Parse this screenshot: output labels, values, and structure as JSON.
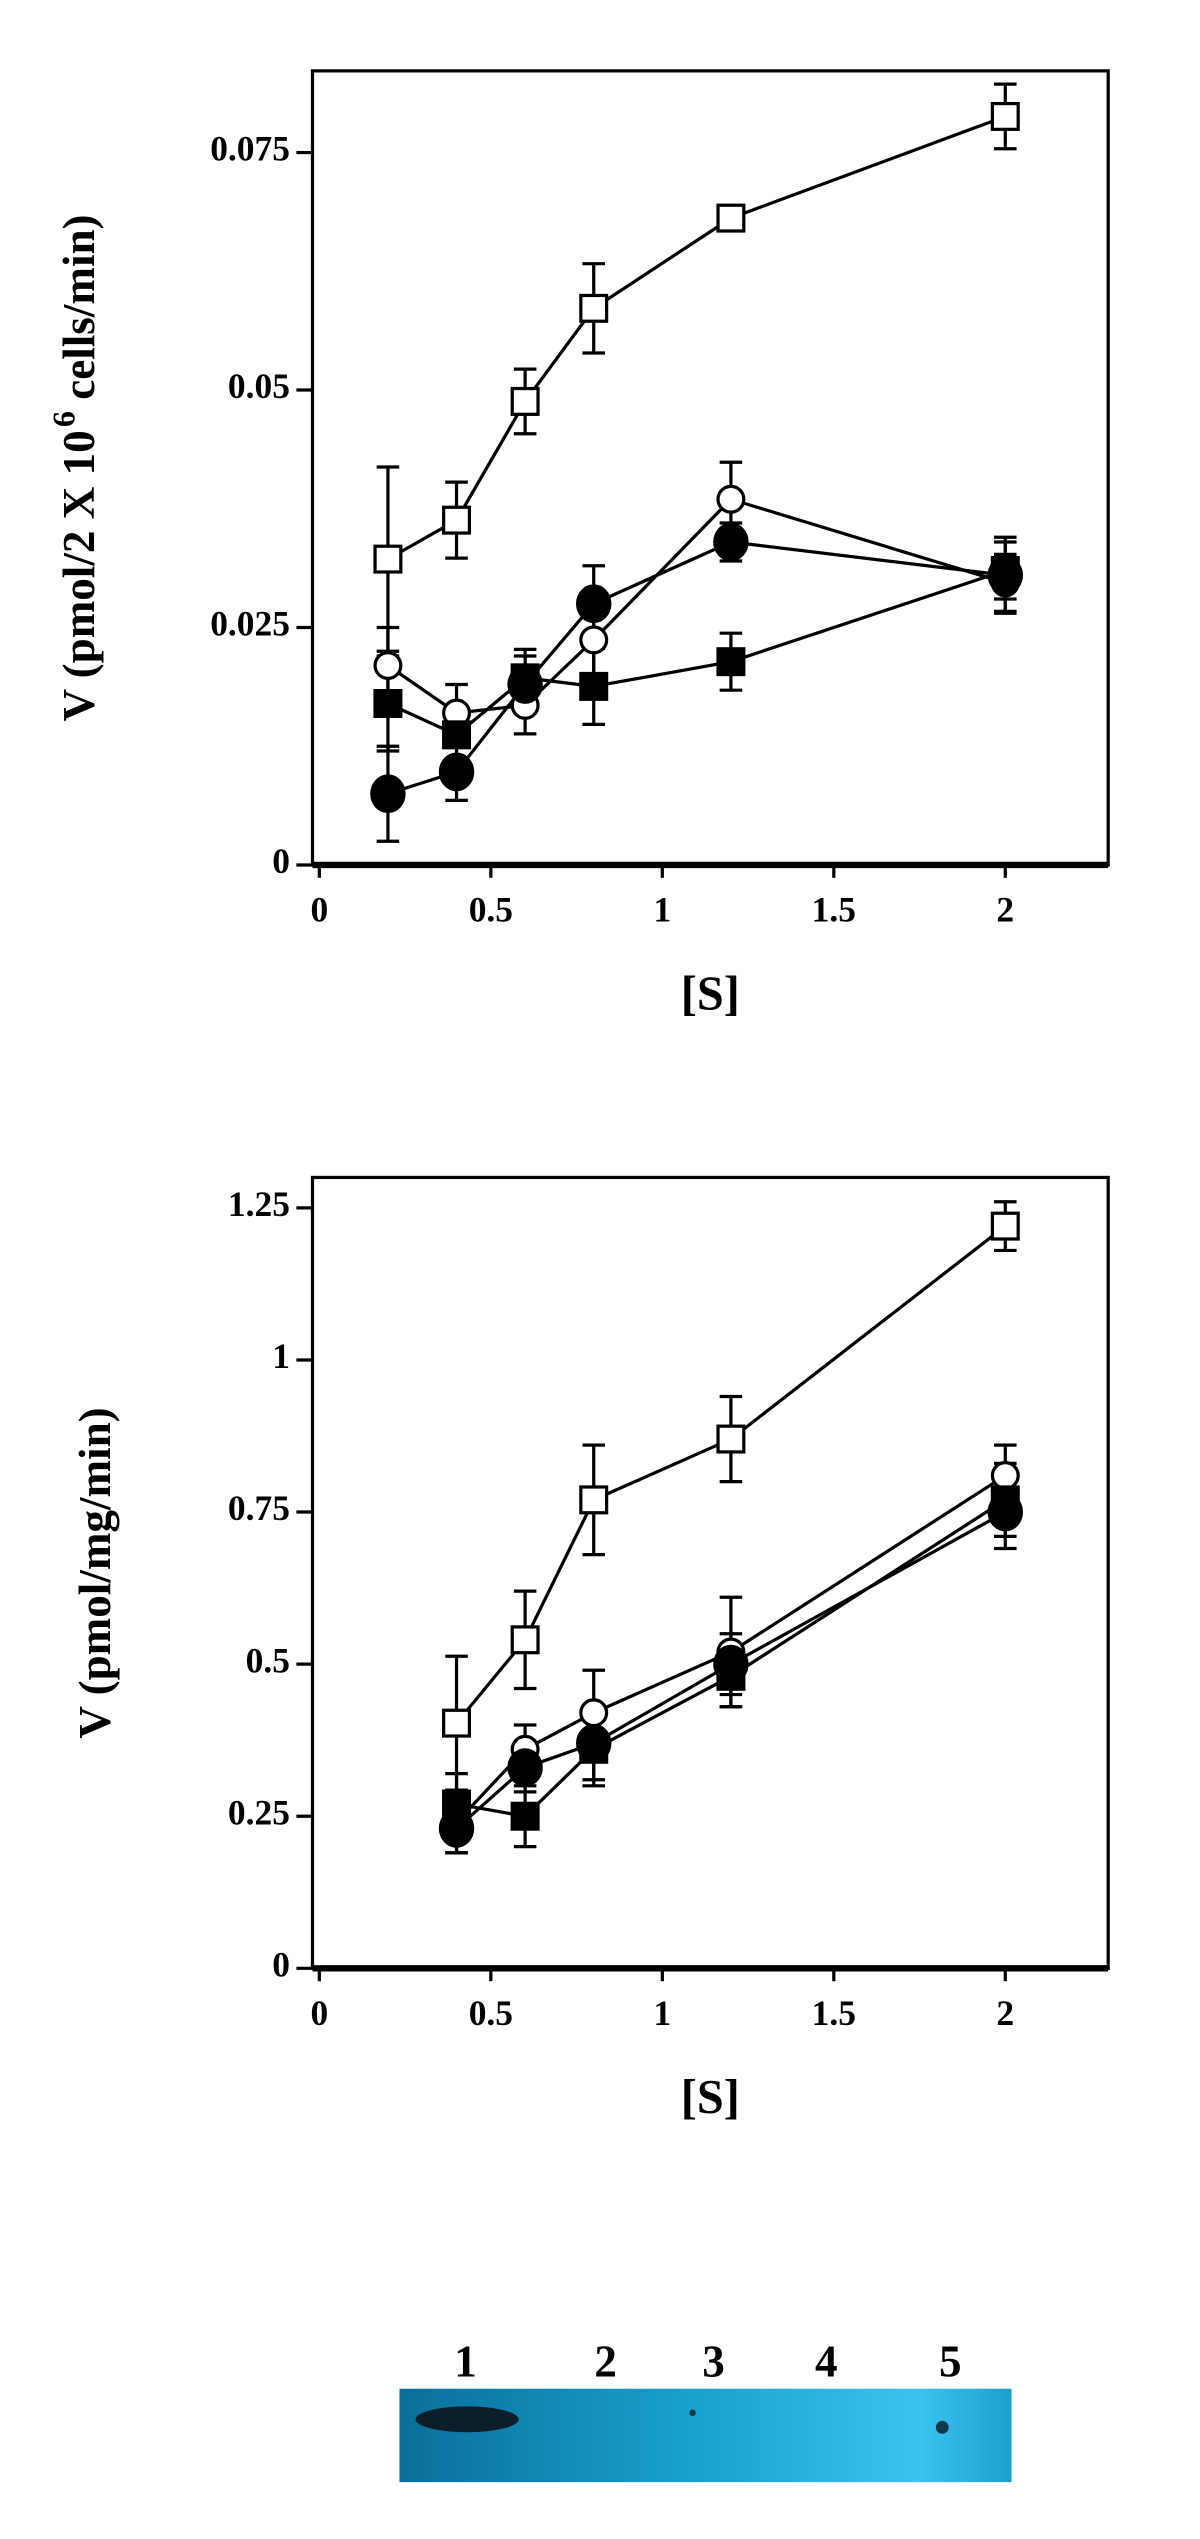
{
  "chart_data": [
    {
      "type": "line",
      "ylabel_parts": [
        "V (pmol/2 X 10",
        "6",
        "cells/min)"
      ],
      "xlabel": "[S]",
      "x": [
        0.2,
        0.4,
        0.6,
        0.8,
        1.2,
        2
      ],
      "xlim": [
        -0.02,
        2.3
      ],
      "xticks": [
        0,
        0.5,
        1,
        1.5,
        2
      ],
      "ylim": [
        0,
        0.0836
      ],
      "yticks": [
        0,
        0.025,
        0.05,
        0.075
      ],
      "series": [
        {
          "marker": "square",
          "filled": false,
          "color": "#000",
          "values": [
            0.0322,
            0.0363,
            0.0488,
            0.0586,
            0.0681,
            0.0788
          ],
          "errors": [
            0.0097,
            0.004,
            0.0034,
            0.0047,
            0,
            0.0034
          ]
        },
        {
          "marker": "circle",
          "filled": false,
          "color": "#000",
          "values": [
            0.021,
            0.016,
            0.0168,
            0.0237,
            0.0385,
            0.0297
          ],
          "errors": [
            0.004,
            0.003,
            0.003,
            0.004,
            0.0039,
            0.003
          ]
        },
        {
          "marker": "circle",
          "filled": true,
          "color": "#000",
          "values": [
            0.0075,
            0.0098,
            0.019,
            0.0275,
            0.034,
            0.0305
          ],
          "errors": [
            0.005,
            0.003,
            0.003,
            0.004,
            0.002,
            0.004
          ]
        },
        {
          "marker": "square",
          "filled": true,
          "color": "#000",
          "values": [
            0.017,
            0.0137,
            0.0197,
            0.0188,
            0.0214,
            0.031
          ],
          "errors": [
            0.005,
            0.003,
            0.003,
            0.004,
            0.003,
            0.003
          ]
        }
      ]
    },
    {
      "type": "line",
      "ylabel_parts": [
        "V (pmol/mg/min)"
      ],
      "xlabel": "[S]",
      "x": [
        0.4,
        0.6,
        0.8,
        1.2,
        2
      ],
      "xlim": [
        -0.02,
        2.3
      ],
      "xticks": [
        0,
        0.5,
        1,
        1.5,
        2
      ],
      "ylim": [
        0,
        1.3
      ],
      "yticks": [
        0,
        0.25,
        0.5,
        0.75,
        1,
        1.25
      ],
      "series": [
        {
          "marker": "square",
          "filled": false,
          "color": "#000",
          "values": [
            0.403,
            0.54,
            0.77,
            0.87,
            1.22
          ],
          "errors": [
            0.11,
            0.08,
            0.09,
            0.07,
            0.04
          ]
        },
        {
          "marker": "circle",
          "filled": false,
          "color": "#000",
          "values": [
            0.24,
            0.36,
            0.42,
            0.52,
            0.81
          ],
          "errors": [
            0.05,
            0.04,
            0.07,
            0.09,
            0.05
          ]
        },
        {
          "marker": "circle",
          "filled": true,
          "color": "#000",
          "values": [
            0.23,
            0.33,
            0.37,
            0.5,
            0.75
          ],
          "errors": [
            0.04,
            0.04,
            0.06,
            0.05,
            0.06
          ]
        },
        {
          "marker": "square",
          "filled": true,
          "color": "#000",
          "values": [
            0.27,
            0.25,
            0.36,
            0.48,
            0.77
          ],
          "errors": [
            0.05,
            0.05,
            0.06,
            0.05,
            0.06
          ]
        }
      ]
    }
  ],
  "blot": {
    "lane_labels": [
      "1",
      "2",
      "3",
      "4",
      "5"
    ]
  }
}
